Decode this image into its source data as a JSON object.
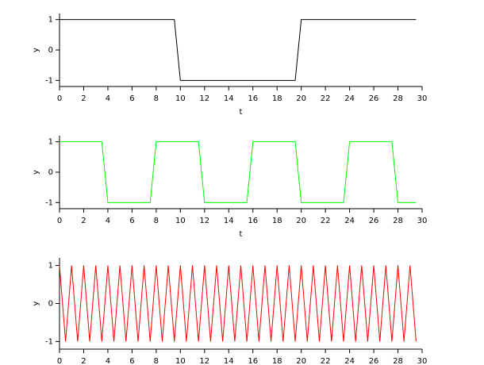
{
  "chart_data": [
    {
      "type": "line",
      "x_label": "t",
      "y_label": "y",
      "x": [
        0,
        9.5,
        10,
        19.5,
        20,
        29.5
      ],
      "values": [
        1,
        1,
        -1,
        -1,
        1,
        1
      ],
      "color": "#000000",
      "xlim": [
        0,
        30
      ],
      "xticks": [
        0,
        2,
        4,
        6,
        8,
        10,
        12,
        14,
        16,
        18,
        20,
        22,
        24,
        26,
        28,
        30
      ],
      "ylim": [
        -1.2,
        1.2
      ],
      "yticks": [
        -1,
        0,
        1
      ]
    },
    {
      "type": "line",
      "x_label": "t",
      "y_label": "y",
      "x": [
        0,
        3.5,
        4,
        7.5,
        8,
        11.5,
        12,
        15.5,
        16,
        19.5,
        20,
        23.5,
        24,
        27.5,
        28,
        29.5
      ],
      "values": [
        1,
        1,
        -1,
        -1,
        1,
        1,
        -1,
        -1,
        1,
        1,
        -1,
        -1,
        1,
        1,
        -1,
        -1
      ],
      "color": "#00ff00",
      "xlim": [
        0,
        30
      ],
      "xticks": [
        0,
        2,
        4,
        6,
        8,
        10,
        12,
        14,
        16,
        18,
        20,
        22,
        24,
        26,
        28,
        30
      ],
      "ylim": [
        -1.2,
        1.2
      ],
      "yticks": [
        -1,
        0,
        1
      ]
    },
    {
      "type": "line",
      "y_label": "y",
      "x": [
        0,
        0.5,
        1,
        1.5,
        2,
        2.5,
        3,
        3.5,
        4,
        4.5,
        5,
        5.5,
        6,
        6.5,
        7,
        7.5,
        8,
        8.5,
        9,
        9.5,
        10,
        10.5,
        11,
        11.5,
        12,
        12.5,
        13,
        13.5,
        14,
        14.5,
        15,
        15.5,
        16,
        16.5,
        17,
        17.5,
        18,
        18.5,
        19,
        19.5,
        20,
        20.5,
        21,
        21.5,
        22,
        22.5,
        23,
        23.5,
        24,
        24.5,
        25,
        25.5,
        26,
        26.5,
        27,
        27.5,
        28,
        28.5,
        29,
        29.5
      ],
      "values": [
        1,
        -1,
        1,
        -1,
        1,
        -1,
        1,
        -1,
        1,
        -1,
        1,
        -1,
        1,
        -1,
        1,
        -1,
        1,
        -1,
        1,
        -1,
        1,
        -1,
        1,
        -1,
        1,
        -1,
        1,
        -1,
        1,
        -1,
        1,
        -1,
        1,
        -1,
        1,
        -1,
        1,
        -1,
        1,
        -1,
        1,
        -1,
        1,
        -1,
        1,
        -1,
        1,
        -1,
        1,
        -1,
        1,
        -1,
        1,
        -1,
        1,
        -1,
        1,
        -1,
        1,
        -1
      ],
      "color": "#ff0000",
      "xlim": [
        0,
        30
      ],
      "xticks": [
        0,
        2,
        4,
        6,
        8,
        10,
        12,
        14,
        16,
        18,
        20,
        22,
        24,
        26,
        28,
        30
      ],
      "ylim": [
        -1.2,
        1.2
      ],
      "yticks": [
        -1,
        0,
        1
      ]
    }
  ]
}
